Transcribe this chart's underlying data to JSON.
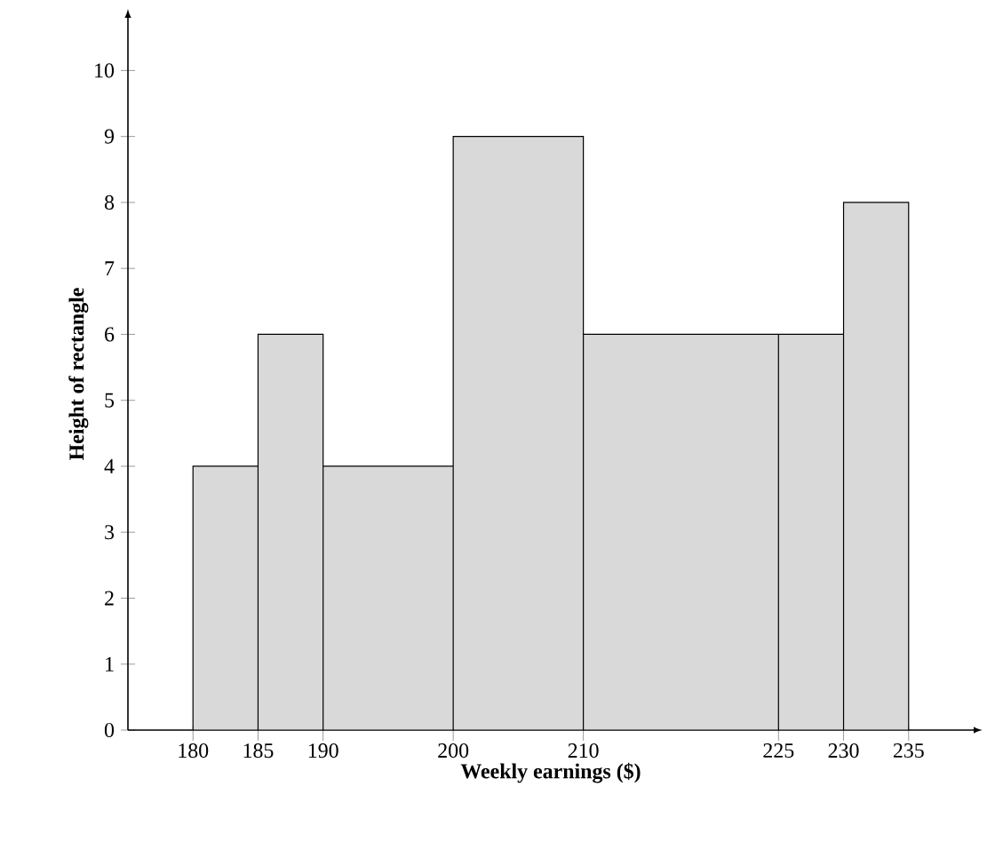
{
  "chart_data": {
    "type": "histogram",
    "xlabel": "Weekly earnings ($)",
    "ylabel": "Height of rectangle",
    "bins": [
      180,
      185,
      190,
      200,
      210,
      225,
      230,
      235
    ],
    "values": [
      4,
      6,
      4,
      9,
      6,
      6,
      8
    ],
    "color": "#d9d9d9",
    "xlim": [
      175,
      240
    ],
    "ylim": [
      0,
      10.8
    ],
    "xticks": [
      180,
      185,
      190,
      200,
      210,
      225,
      230,
      235
    ],
    "yticks": [
      0,
      1,
      2,
      3,
      4,
      5,
      6,
      7,
      8,
      9,
      10
    ],
    "grid": false
  }
}
